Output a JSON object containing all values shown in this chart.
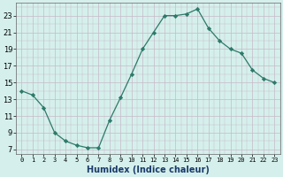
{
  "x": [
    0,
    1,
    2,
    3,
    4,
    5,
    6,
    7,
    8,
    9,
    10,
    11,
    12,
    13,
    14,
    15,
    16,
    17,
    18,
    19,
    20,
    21,
    22,
    23
  ],
  "y": [
    14.0,
    13.5,
    12.0,
    9.0,
    8.0,
    7.5,
    7.2,
    7.2,
    10.5,
    13.2,
    16.0,
    19.0,
    21.0,
    23.0,
    23.0,
    23.2,
    23.8,
    21.5,
    20.0,
    19.0,
    18.5,
    16.5,
    15.5,
    15.0
  ],
  "xlabel": "Humidex (Indice chaleur)",
  "xlim": [
    -0.5,
    23.5
  ],
  "ylim": [
    6.5,
    24.5
  ],
  "yticks": [
    7,
    9,
    11,
    13,
    15,
    17,
    19,
    21,
    23
  ],
  "xticks": [
    0,
    1,
    2,
    3,
    4,
    5,
    6,
    7,
    8,
    9,
    10,
    11,
    12,
    13,
    14,
    15,
    16,
    17,
    18,
    19,
    20,
    21,
    22,
    23
  ],
  "xtick_labels": [
    "0",
    "1",
    "2",
    "3",
    "4",
    "5",
    "6",
    "7",
    "8",
    "9",
    "10",
    "11",
    "12",
    "13",
    "14",
    "15",
    "16",
    "17",
    "18",
    "19",
    "20",
    "21",
    "22",
    "23"
  ],
  "line_color": "#2d7a6a",
  "marker": "D",
  "marker_size": 2.2,
  "bg_color": "#d5f0ec",
  "grid_major_color": "#c8b8c8",
  "grid_minor_color": "#c8b8c8"
}
